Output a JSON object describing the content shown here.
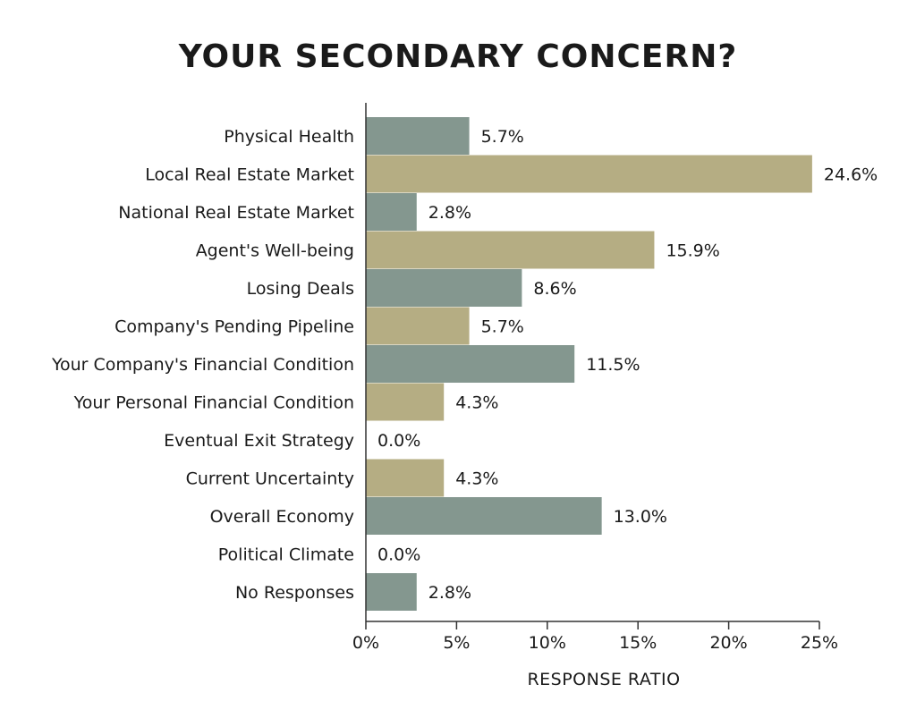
{
  "chart_data": {
    "type": "bar",
    "orientation": "horizontal",
    "title": "YOUR SECONDARY CONCERN?",
    "xlabel": "RESPONSE RATIO",
    "ylabel": "",
    "xlim": [
      0,
      25
    ],
    "x_ticks": [
      "0%",
      "5%",
      "10%",
      "15%",
      "20%",
      "25%"
    ],
    "categories": [
      "Physical Health",
      "Local Real Estate Market",
      "National Real Estate Market",
      "Agent's Well-being",
      "Losing Deals",
      "Company's Pending Pipeline",
      "Your Company's Financial Condition",
      "Your Personal Financial Condition",
      "Eventual Exit Strategy",
      "Current Uncertainty",
      "Overall Economy",
      "Political Climate",
      "No Responses"
    ],
    "values": [
      5.7,
      24.6,
      2.8,
      15.9,
      8.6,
      5.7,
      11.5,
      4.3,
      0.0,
      4.3,
      13.0,
      0.0,
      2.8
    ],
    "value_labels": [
      "5.7%",
      "24.6%",
      "2.8%",
      "15.9%",
      "8.6%",
      "5.7%",
      "11.5%",
      "4.3%",
      "0.0%",
      "4.3%",
      "13.0%",
      "0.0%",
      "2.8%"
    ],
    "colors": {
      "bar_primary": "#84978f",
      "bar_alternate": "#b5ad83",
      "axis": "#333333"
    },
    "grid": false,
    "legend": "none"
  }
}
